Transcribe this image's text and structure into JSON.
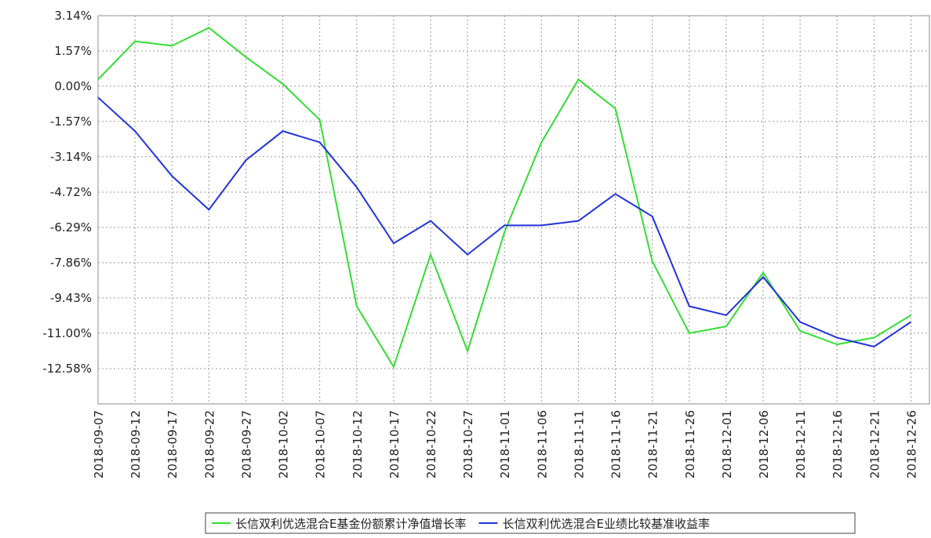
{
  "chart_data": {
    "type": "line",
    "categories": [
      "2018-09-07",
      "2018-09-12",
      "2018-09-17",
      "2018-09-22",
      "2018-09-27",
      "2018-10-02",
      "2018-10-07",
      "2018-10-12",
      "2018-10-17",
      "2018-10-22",
      "2018-10-27",
      "2018-11-01",
      "2018-11-06",
      "2018-11-11",
      "2018-11-16",
      "2018-11-21",
      "2018-11-26",
      "2018-12-01",
      "2018-12-06",
      "2018-12-11",
      "2018-12-16",
      "2018-12-21",
      "2018-12-26"
    ],
    "series": [
      {
        "name": "长信双利优选混合E基金份额累计净值增长率",
        "color": "#33dd33",
        "values": [
          0.3,
          2.0,
          1.8,
          2.6,
          1.3,
          0.1,
          -1.5,
          -9.8,
          -12.5,
          -7.5,
          -11.8,
          -6.5,
          -2.5,
          0.3,
          -1.0,
          -7.8,
          -11.0,
          -10.7,
          -8.3,
          -10.9,
          -11.5,
          -11.2,
          -10.2
        ]
      },
      {
        "name": "长信双利优选混合E业绩比较基准收益率",
        "color": "#2233dd",
        "values": [
          -0.5,
          -2.0,
          -4.0,
          -5.5,
          -3.3,
          -2.0,
          -2.5,
          -4.5,
          -7.0,
          -6.0,
          -7.5,
          -6.2,
          -6.2,
          -6.0,
          -4.8,
          -5.8,
          -9.8,
          -10.2,
          -8.5,
          -10.5,
          -11.2,
          -11.6,
          -10.5
        ]
      }
    ],
    "ylim": [
      -14.15,
      3.14
    ],
    "yticks": [
      {
        "value": 3.14,
        "label": "3.14%"
      },
      {
        "value": 1.57,
        "label": "1.57%"
      },
      {
        "value": 0,
        "label": "0.00%"
      },
      {
        "value": -1.57,
        "label": "-1.57%"
      },
      {
        "value": -3.14,
        "label": "-3.14%"
      },
      {
        "value": -4.72,
        "label": "-4.72%"
      },
      {
        "value": -6.29,
        "label": "-6.29%"
      },
      {
        "value": -7.86,
        "label": "-7.86%"
      },
      {
        "value": -9.43,
        "label": "-9.43%"
      },
      {
        "value": -11.0,
        "label": "-11.00%"
      },
      {
        "value": -12.58,
        "label": "-12.58%"
      }
    ],
    "grid": true
  }
}
